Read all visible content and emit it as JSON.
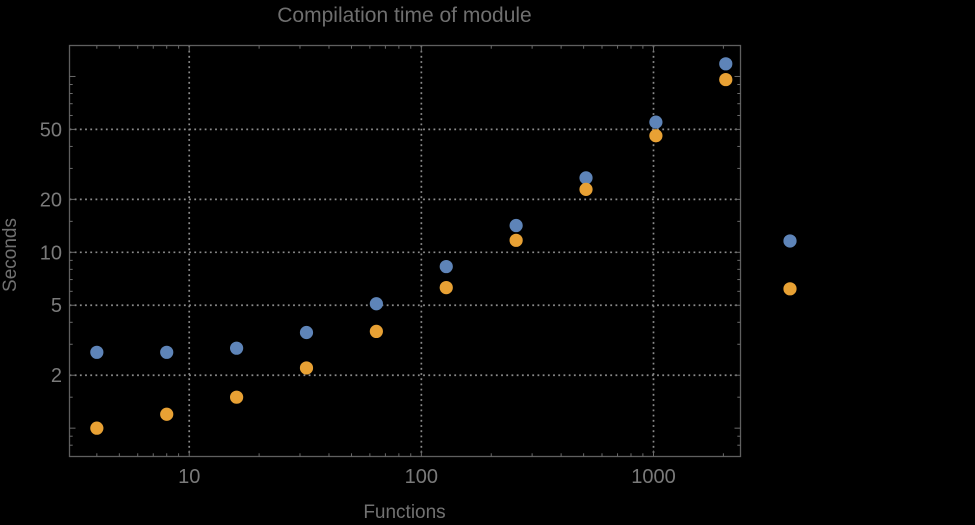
{
  "title": "Compilation time of module",
  "background_color": "#000000",
  "chart_data": {
    "type": "scatter",
    "title": "Compilation time of module",
    "xlabel": "Functions",
    "ylabel": "Seconds",
    "x_scale": "log",
    "y_scale": "log",
    "x_range": [
      3.05,
      2370
    ],
    "y_range": [
      0.69,
      150
    ],
    "grid": "dotted",
    "x": [
      4,
      8,
      16,
      32,
      64,
      128,
      256,
      512,
      1024,
      2048
    ],
    "series": [
      {
        "name": "blue",
        "color": "#5E84B8",
        "values": [
          2.7,
          2.7,
          2.85,
          3.5,
          5.1,
          8.3,
          14.2,
          26.5,
          55,
          118
        ]
      },
      {
        "name": "orange",
        "color": "#E8A134",
        "values": [
          1.0,
          1.2,
          1.5,
          2.2,
          3.55,
          6.3,
          11.7,
          22.8,
          46,
          96
        ]
      }
    ],
    "x_tick_values": [
      10,
      100,
      1000
    ],
    "x_tick_labels": [
      "10",
      "100",
      "1000"
    ],
    "y_tick_values": [
      2,
      5,
      10,
      20,
      50
    ],
    "y_tick_labels": [
      "2",
      "5",
      "10",
      "20",
      "50"
    ],
    "legend_position": "right-outside",
    "legend_markers": [
      {
        "series": "blue",
        "color": "#5E84B8",
        "y_value": 11.6
      },
      {
        "series": "orange",
        "color": "#E8A134",
        "y_value": 6.2
      }
    ]
  },
  "colors": {
    "frame": "#5f5f5f",
    "grid": "#8b8b8b",
    "tick": "#6a6a6a",
    "tick_label": "#7a7a7a",
    "title": "#6f6f6f",
    "axis_label": "#717171"
  }
}
